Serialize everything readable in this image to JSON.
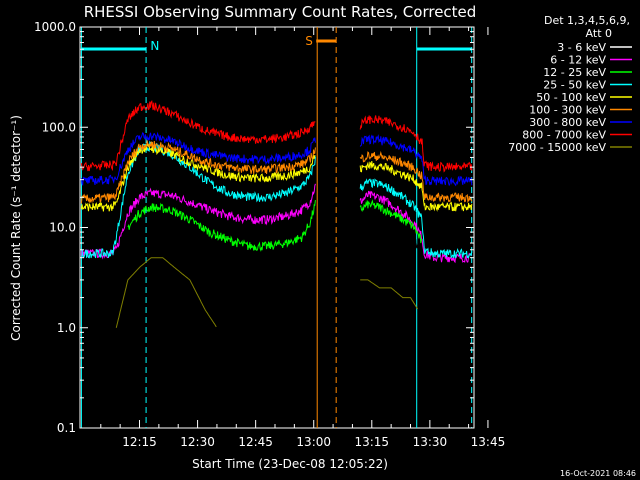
{
  "chart_data": {
    "type": "line",
    "title": "RHESSI Observing Summary Count Rates, Corrected",
    "xlabel": "Start Time (23-Dec-08 12:05:22)",
    "ylabel": "Corrected Count Rate (s⁻¹ detector⁻¹)",
    "yscale": "log",
    "ylim": [
      0.1,
      1000
    ],
    "xlim_minutes": [
      -5.37,
      96.4
    ],
    "x_tick_labels": [
      "12:15",
      "12:30",
      "12:45",
      "13:00",
      "13:15",
      "13:30",
      "13:45"
    ],
    "x_tick_minutes": [
      10,
      25,
      40,
      55,
      70,
      85,
      100
    ],
    "y_tick_labels": [
      "0.1",
      "1.0",
      "10.0",
      "100.0",
      "1000.0"
    ],
    "y_tick_values": [
      0.1,
      1,
      10,
      100,
      1000
    ],
    "legend_header": [
      "Det 1,3,4,5,6,9,",
      "Att 0"
    ],
    "legend_position": "right",
    "data_gap_minutes": [
      57.5,
      67.0
    ],
    "series": [
      {
        "name": "3 - 6 keV",
        "color": "#000000",
        "t": [
          -5,
          3,
          5,
          9,
          13,
          18,
          23,
          28,
          33,
          38,
          43,
          48,
          52,
          54,
          55.6,
          57.5,
          67,
          69,
          72,
          75,
          78,
          81,
          83,
          83.5,
          86,
          90,
          96
        ],
        "v": [
          null,
          null,
          null,
          null,
          9,
          10,
          8,
          5.5,
          4,
          3.5,
          3.5,
          4,
          5,
          7,
          14,
          null,
          12,
          15,
          14,
          12,
          10,
          8,
          5,
          null,
          null,
          null,
          null
        ]
      },
      {
        "name": "6 - 12 keV",
        "color": "#ff00ff",
        "t": [
          -5,
          3,
          4,
          7,
          10,
          13,
          18,
          23,
          28,
          33,
          38,
          43,
          48,
          52,
          54,
          55.6,
          57.5,
          67,
          69,
          72,
          75,
          78,
          81,
          83,
          83.5,
          86,
          90,
          96
        ],
        "v": [
          5.5,
          5.5,
          6,
          14,
          20,
          22,
          21,
          18,
          15,
          13,
          12,
          12,
          13,
          15,
          18,
          27,
          null,
          18,
          21,
          20,
          17,
          14,
          11,
          8,
          5.5,
          5,
          5,
          5
        ]
      },
      {
        "name": "12 - 25 keV",
        "color": "#00ff00",
        "t": [
          -5,
          3,
          4,
          7,
          10,
          13,
          18,
          23,
          28,
          33,
          38,
          43,
          48,
          52,
          54,
          55.6,
          57.5,
          67,
          69,
          72,
          75,
          78,
          81,
          83,
          83.5,
          86,
          90,
          96
        ],
        "v": [
          null,
          null,
          null,
          10,
          14,
          16,
          15,
          12,
          9,
          7.5,
          6.5,
          6.5,
          7,
          8,
          11,
          18,
          null,
          15,
          17,
          16,
          14,
          12,
          10,
          7,
          null,
          null,
          null,
          null
        ]
      },
      {
        "name": "25 - 50 keV",
        "color": "#00ffff",
        "t": [
          -5,
          3,
          4,
          7,
          10,
          13,
          18,
          23,
          28,
          33,
          38,
          43,
          48,
          52,
          54,
          55.6,
          57.5,
          67,
          69,
          72,
          75,
          78,
          81,
          83,
          83.5,
          86,
          90,
          96
        ],
        "v": [
          5.5,
          5.5,
          8,
          35,
          60,
          65,
          55,
          40,
          28,
          22,
          20,
          20,
          22,
          26,
          32,
          50,
          null,
          25,
          28,
          27,
          24,
          20,
          16,
          12,
          6,
          5.5,
          5.5,
          5.5
        ]
      },
      {
        "name": "50 - 100 keV",
        "color": "#ffff00",
        "t": [
          -5,
          3,
          4,
          7,
          10,
          13,
          18,
          23,
          28,
          33,
          38,
          43,
          48,
          52,
          54,
          55.6,
          57.5,
          67,
          69,
          72,
          75,
          78,
          81,
          83,
          83.5,
          86,
          90,
          96
        ],
        "v": [
          16,
          16,
          17,
          40,
          60,
          62,
          55,
          45,
          38,
          33,
          31,
          31,
          33,
          36,
          40,
          55,
          null,
          38,
          42,
          41,
          38,
          34,
          30,
          25,
          16,
          16,
          16,
          16
        ]
      },
      {
        "name": "100 - 300 keV",
        "color": "#ff8800",
        "t": [
          -5,
          3,
          4,
          7,
          10,
          13,
          18,
          23,
          28,
          33,
          38,
          43,
          48,
          52,
          54,
          55.6,
          57.5,
          67,
          69,
          72,
          75,
          78,
          81,
          83,
          83.5,
          86,
          90,
          96
        ],
        "v": [
          19,
          20,
          21,
          45,
          65,
          68,
          62,
          52,
          44,
          40,
          38,
          38,
          40,
          43,
          48,
          62,
          null,
          48,
          52,
          51,
          48,
          44,
          39,
          32,
          20,
          20,
          20,
          20
        ]
      },
      {
        "name": "300 - 800 keV",
        "color": "#0000ff",
        "t": [
          -5,
          3,
          4,
          7,
          10,
          13,
          18,
          23,
          28,
          33,
          38,
          43,
          48,
          52,
          54,
          55.6,
          57.5,
          67,
          69,
          72,
          75,
          78,
          81,
          83,
          83.5,
          86,
          90,
          96
        ],
        "v": [
          29,
          30,
          32,
          60,
          80,
          82,
          74,
          62,
          54,
          50,
          48,
          48,
          50,
          54,
          60,
          78,
          null,
          70,
          76,
          74,
          70,
          64,
          57,
          48,
          30,
          29,
          29,
          29
        ]
      },
      {
        "name": "800 - 7000 keV",
        "color": "#ff0000",
        "t": [
          -5,
          3,
          4,
          7,
          10,
          13,
          18,
          23,
          28,
          33,
          38,
          43,
          48,
          52,
          54,
          55.6,
          57.5,
          67,
          69,
          72,
          75,
          78,
          81,
          83,
          83.5,
          86,
          90,
          96
        ],
        "v": [
          40,
          42,
          45,
          120,
          160,
          165,
          140,
          110,
          90,
          80,
          76,
          76,
          80,
          88,
          100,
          115,
          null,
          105,
          120,
          118,
          110,
          100,
          88,
          70,
          42,
          40,
          40,
          40
        ]
      },
      {
        "name": "7000 - 15000 keV",
        "color": "#808000",
        "t": [
          -5,
          3,
          4,
          7,
          10,
          13,
          16,
          19,
          23,
          27,
          30,
          34,
          57.5,
          67,
          69,
          72,
          75,
          78,
          80,
          82,
          96
        ],
        "v": [
          null,
          null,
          1,
          3,
          4,
          5,
          5,
          4,
          3,
          1.5,
          1,
          null,
          null,
          3,
          3,
          2.5,
          2.5,
          2,
          2,
          1.5,
          null
        ]
      }
    ],
    "annotations": [
      {
        "label": "N",
        "color": "#00ffff"
      },
      {
        "label": "S",
        "color": "#ff8800"
      }
    ],
    "footer_timestamp": "16-Oct-2021 08:46"
  }
}
